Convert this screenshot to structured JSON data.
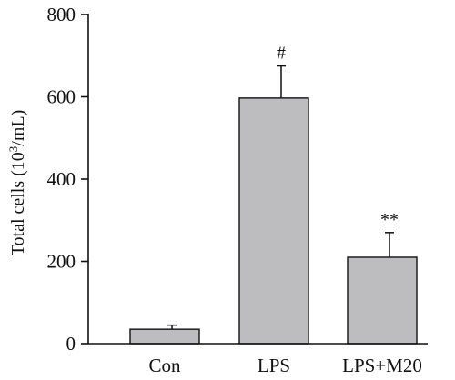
{
  "chart_data": {
    "type": "bar",
    "ylabel_main": "Total cells (10",
    "ylabel_sup": "3",
    "ylabel_end": "/mL)",
    "xlabel": "",
    "categories": [
      "Con",
      "LPS",
      "LPS+M20"
    ],
    "values": [
      35,
      597,
      210
    ],
    "errors": [
      10,
      78,
      60
    ],
    "annotations": [
      "",
      "#",
      "**"
    ],
    "ylim": [
      0,
      800
    ],
    "yticks": [
      0,
      200,
      400,
      600,
      800
    ],
    "ytick_labels": [
      "0",
      "200",
      "400",
      "600",
      "800"
    ],
    "grid": false,
    "bar_color": "#bdbdc0",
    "edge_color": "#111111"
  }
}
